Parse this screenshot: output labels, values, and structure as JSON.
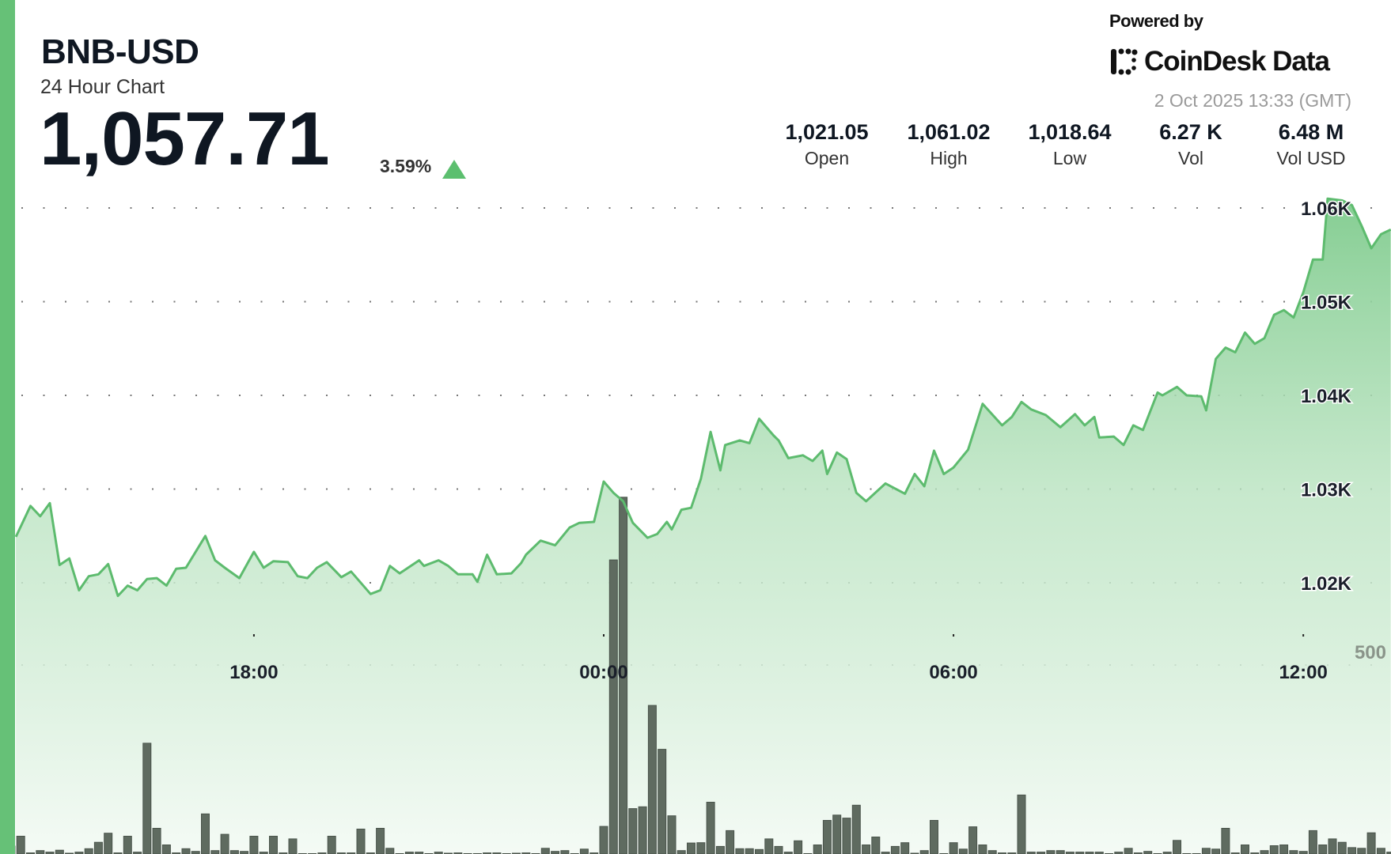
{
  "header": {
    "symbol": "BNB-USD",
    "subtitle": "24 Hour Chart",
    "price": "1,057.71",
    "change": "3.59%",
    "change_direction": "up"
  },
  "branding": {
    "powered_by": "Powered by",
    "logo_text": "CoinDesk Data",
    "timestamp": "2 Oct 2025 13:33 (GMT)"
  },
  "stats": [
    {
      "value": "1,021.05",
      "label": "Open"
    },
    {
      "value": "1,061.02",
      "label": "High"
    },
    {
      "value": "1,018.64",
      "label": "Low"
    },
    {
      "value": "6.27 K",
      "label": "Vol"
    },
    {
      "value": "6.48 M",
      "label": "Vol USD"
    }
  ],
  "colors": {
    "accent": "#66c177",
    "line": "#5dbb6e",
    "fill_top": "#7fcb8d",
    "fill_bottom": "#f3faf4",
    "volume_bar": "#5f6b60",
    "up": "#5cbf6f"
  },
  "chart_data": {
    "type": "line",
    "title": "",
    "y_ticks": [
      "1.06K",
      "1.05K",
      "1.04K",
      "1.03K",
      "1.02K"
    ],
    "y_tick_values": [
      1060,
      1050,
      1040,
      1030,
      1020
    ],
    "x_ticks": [
      "18:00",
      "00:00",
      "06:00",
      "12:00"
    ],
    "grid": "dotted-horizontal",
    "series": [
      {
        "type": "area",
        "points": [
          [
            "13:55",
            1024.9
          ],
          [
            "14:10",
            1028.2
          ],
          [
            "14:20",
            1027.1
          ],
          [
            "14:30",
            1028.5
          ],
          [
            "14:40",
            1021.9
          ],
          [
            "14:50",
            1022.6
          ],
          [
            "15:00",
            1019.2
          ],
          [
            "15:10",
            1020.7
          ],
          [
            "15:20",
            1020.9
          ],
          [
            "15:30",
            1022.0
          ],
          [
            "15:40",
            1018.6
          ],
          [
            "15:50",
            1019.7
          ],
          [
            "16:00",
            1019.2
          ],
          [
            "16:10",
            1020.4
          ],
          [
            "16:20",
            1020.5
          ],
          [
            "16:30",
            1019.7
          ],
          [
            "16:40",
            1021.5
          ],
          [
            "16:50",
            1021.6
          ],
          [
            "17:10",
            1025.0
          ],
          [
            "17:20",
            1022.4
          ],
          [
            "17:30",
            1021.6
          ],
          [
            "17:45",
            1020.5
          ],
          [
            "18:00",
            1023.3
          ],
          [
            "18:10",
            1021.6
          ],
          [
            "18:20",
            1022.3
          ],
          [
            "18:35",
            1022.2
          ],
          [
            "18:45",
            1020.7
          ],
          [
            "18:55",
            1020.5
          ],
          [
            "19:05",
            1021.6
          ],
          [
            "19:15",
            1022.2
          ],
          [
            "19:30",
            1020.6
          ],
          [
            "19:40",
            1021.2
          ],
          [
            "20:00",
            1018.8
          ],
          [
            "20:10",
            1019.2
          ],
          [
            "20:20",
            1021.8
          ],
          [
            "20:30",
            1021.0
          ],
          [
            "20:50",
            1022.4
          ],
          [
            "20:55",
            1021.8
          ],
          [
            "21:10",
            1022.4
          ],
          [
            "21:20",
            1021.8
          ],
          [
            "21:30",
            1020.9
          ],
          [
            "21:45",
            1020.9
          ],
          [
            "21:50",
            1020.1
          ],
          [
            "22:00",
            1023.0
          ],
          [
            "22:10",
            1020.9
          ],
          [
            "22:25",
            1021.0
          ],
          [
            "22:35",
            1022.1
          ],
          [
            "22:40",
            1023.0
          ],
          [
            "22:55",
            1024.5
          ],
          [
            "23:10",
            1024.0
          ],
          [
            "23:25",
            1025.9
          ],
          [
            "23:35",
            1026.4
          ],
          [
            "23:50",
            1026.5
          ],
          [
            "00:00",
            1030.8
          ],
          [
            "00:10",
            1029.6
          ],
          [
            "00:20",
            1028.7
          ],
          [
            "00:30",
            1026.4
          ],
          [
            "00:45",
            1024.8
          ],
          [
            "00:55",
            1025.2
          ],
          [
            "01:05",
            1026.5
          ],
          [
            "01:10",
            1025.7
          ],
          [
            "01:20",
            1027.8
          ],
          [
            "01:30",
            1028.0
          ],
          [
            "01:40",
            1031.1
          ],
          [
            "01:50",
            1036.1
          ],
          [
            "02:00",
            1032.0
          ],
          [
            "02:05",
            1034.7
          ],
          [
            "02:20",
            1035.2
          ],
          [
            "02:30",
            1034.9
          ],
          [
            "02:40",
            1037.5
          ],
          [
            "02:55",
            1035.7
          ],
          [
            "03:00",
            1035.2
          ],
          [
            "03:10",
            1033.3
          ],
          [
            "03:25",
            1033.6
          ],
          [
            "03:35",
            1033.0
          ],
          [
            "03:45",
            1034.1
          ],
          [
            "03:50",
            1031.6
          ],
          [
            "04:00",
            1033.9
          ],
          [
            "04:10",
            1033.2
          ],
          [
            "04:20",
            1029.6
          ],
          [
            "04:30",
            1028.7
          ],
          [
            "04:50",
            1030.6
          ],
          [
            "05:10",
            1029.5
          ],
          [
            "05:20",
            1031.6
          ],
          [
            "05:30",
            1030.3
          ],
          [
            "05:40",
            1034.1
          ],
          [
            "05:50",
            1031.6
          ],
          [
            "06:00",
            1032.3
          ],
          [
            "06:15",
            1034.2
          ],
          [
            "06:30",
            1039.1
          ],
          [
            "06:50",
            1036.8
          ],
          [
            "07:00",
            1037.7
          ],
          [
            "07:10",
            1039.3
          ],
          [
            "07:20",
            1038.5
          ],
          [
            "07:35",
            1037.9
          ],
          [
            "07:50",
            1036.6
          ],
          [
            "08:05",
            1038.0
          ],
          [
            "08:15",
            1036.8
          ],
          [
            "08:25",
            1037.7
          ],
          [
            "08:30",
            1035.5
          ],
          [
            "08:45",
            1035.6
          ],
          [
            "08:55",
            1034.7
          ],
          [
            "09:05",
            1036.8
          ],
          [
            "09:15",
            1036.3
          ],
          [
            "09:30",
            1040.3
          ],
          [
            "09:35",
            1040.0
          ],
          [
            "09:50",
            1040.9
          ],
          [
            "10:00",
            1040.0
          ],
          [
            "10:15",
            1039.9
          ],
          [
            "10:20",
            1038.4
          ],
          [
            "10:30",
            1043.9
          ],
          [
            "10:40",
            1045.1
          ],
          [
            "10:50",
            1044.6
          ],
          [
            "11:00",
            1046.7
          ],
          [
            "11:10",
            1045.5
          ],
          [
            "11:20",
            1046.1
          ],
          [
            "11:30",
            1048.6
          ],
          [
            "11:40",
            1049.1
          ],
          [
            "11:50",
            1048.3
          ],
          [
            "12:00",
            1051.0
          ],
          [
            "12:10",
            1054.5
          ],
          [
            "12:20",
            1054.5
          ],
          [
            "12:25",
            1061.0
          ],
          [
            "12:40",
            1060.8
          ],
          [
            "12:50",
            1060.3
          ],
          [
            "13:00",
            1058.1
          ],
          [
            "13:10",
            1055.7
          ],
          [
            "13:20",
            1057.2
          ],
          [
            "13:30",
            1057.7
          ]
        ]
      },
      {
        "type": "bar",
        "axis_label": "500",
        "start": "13:50",
        "interval_minutes": 10,
        "values": [
          21,
          47,
          3,
          9,
          5,
          10,
          2,
          5,
          14,
          31,
          55,
          3,
          47,
          5,
          293,
          68,
          24,
          3,
          14,
          7,
          106,
          9,
          52,
          9,
          7,
          47,
          5,
          47,
          3,
          40,
          1,
          1,
          3,
          47,
          3,
          3,
          66,
          3,
          68,
          15,
          1,
          5,
          5,
          1,
          5,
          2,
          3,
          1,
          1,
          3,
          3,
          1,
          2,
          3,
          1,
          15,
          7,
          9,
          1,
          13,
          3,
          73,
          778,
          944,
          120,
          125,
          393,
          277,
          101,
          9,
          29,
          30,
          137,
          20,
          62,
          14,
          14,
          12,
          40,
          20,
          5,
          35,
          1,
          24,
          89,
          103,
          95,
          129,
          24,
          45,
          5,
          20,
          30,
          2,
          9,
          89,
          1,
          30,
          13,
          72,
          24,
          9,
          3,
          3,
          156,
          5,
          5,
          9,
          9,
          5,
          5,
          5,
          5,
          1,
          5,
          15,
          3,
          7,
          1,
          5,
          36,
          1,
          1,
          15,
          13,
          68,
          3,
          24,
          3,
          9,
          22,
          24,
          9,
          7,
          62,
          24,
          40,
          31,
          17,
          15,
          56,
          15,
          5
        ]
      }
    ]
  }
}
